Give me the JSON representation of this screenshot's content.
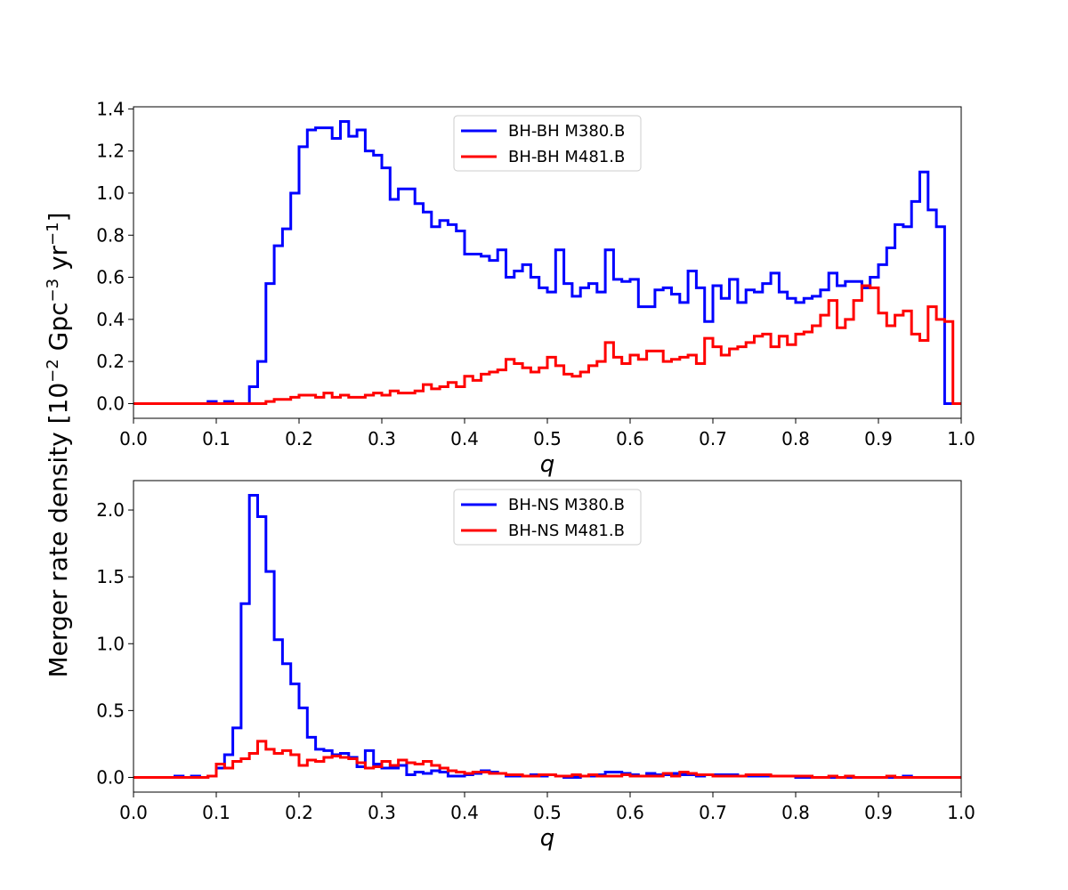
{
  "figure": {
    "ylabel_main": "Merger rate density [10",
    "ylabel_exp1": "−2",
    "ylabel_mid": " Gpc",
    "ylabel_exp2": "−3",
    "ylabel_mid2": " yr",
    "ylabel_exp3": "−1",
    "ylabel_end": "]"
  },
  "chart_data": [
    {
      "type": "line",
      "drawstyle": "steps-post",
      "xlabel": "q",
      "ylabel": "",
      "xlim": [
        0.0,
        1.0
      ],
      "ylim": [
        -0.07,
        1.41
      ],
      "xticks": [
        0.0,
        0.1,
        0.2,
        0.3,
        0.4,
        0.5,
        0.6,
        0.7,
        0.8,
        0.9,
        1.0
      ],
      "xtick_labels": [
        "0.0",
        "0.1",
        "0.2",
        "0.3",
        "0.4",
        "0.5",
        "0.6",
        "0.7",
        "0.8",
        "0.9",
        "1.0"
      ],
      "yticks": [
        0.0,
        0.2,
        0.4,
        0.6,
        0.8,
        1.0,
        1.2,
        1.4
      ],
      "ytick_labels": [
        "0.0",
        "0.2",
        "0.4",
        "0.6",
        "0.8",
        "1.0",
        "1.2",
        "1.4"
      ],
      "legend_position": "top-center",
      "bin_edges_start": 0.0,
      "bin_width": 0.01,
      "series": [
        {
          "name": "BH-BH M380.B",
          "color": "#0000ff",
          "values": [
            0,
            0,
            0,
            0,
            0,
            0,
            0,
            0,
            0,
            0.01,
            0,
            0.01,
            0,
            0,
            0.08,
            0.2,
            0.57,
            0.75,
            0.83,
            1.0,
            1.22,
            1.3,
            1.31,
            1.31,
            1.26,
            1.34,
            1.27,
            1.3,
            1.2,
            1.18,
            1.12,
            0.97,
            1.02,
            1.02,
            0.95,
            0.91,
            0.84,
            0.87,
            0.85,
            0.82,
            0.71,
            0.71,
            0.7,
            0.68,
            0.73,
            0.6,
            0.63,
            0.66,
            0.6,
            0.55,
            0.53,
            0.73,
            0.57,
            0.51,
            0.55,
            0.57,
            0.53,
            0.73,
            0.59,
            0.58,
            0.59,
            0.46,
            0.46,
            0.54,
            0.55,
            0.52,
            0.48,
            0.63,
            0.55,
            0.39,
            0.56,
            0.5,
            0.59,
            0.48,
            0.54,
            0.53,
            0.57,
            0.62,
            0.53,
            0.5,
            0.48,
            0.5,
            0.51,
            0.54,
            0.62,
            0.56,
            0.58,
            0.58,
            0.55,
            0.6,
            0.66,
            0.74,
            0.85,
            0.84,
            0.96,
            1.1,
            0.92,
            0.84,
            0,
            0
          ]
        },
        {
          "name": "BH-BH M481.B",
          "color": "#ff0000",
          "values": [
            0,
            0,
            0,
            0,
            0,
            0,
            0,
            0,
            0,
            0,
            0,
            0,
            0,
            0,
            0,
            0,
            0.01,
            0.02,
            0.02,
            0.03,
            0.04,
            0.04,
            0.03,
            0.05,
            0.03,
            0.04,
            0.03,
            0.03,
            0.04,
            0.05,
            0.04,
            0.06,
            0.05,
            0.05,
            0.06,
            0.09,
            0.07,
            0.08,
            0.1,
            0.08,
            0.13,
            0.11,
            0.14,
            0.15,
            0.16,
            0.21,
            0.19,
            0.17,
            0.15,
            0.17,
            0.22,
            0.18,
            0.14,
            0.13,
            0.15,
            0.18,
            0.2,
            0.29,
            0.22,
            0.19,
            0.23,
            0.21,
            0.25,
            0.25,
            0.2,
            0.21,
            0.22,
            0.23,
            0.19,
            0.31,
            0.27,
            0.23,
            0.26,
            0.27,
            0.29,
            0.32,
            0.33,
            0.27,
            0.32,
            0.28,
            0.33,
            0.34,
            0.37,
            0.42,
            0.49,
            0.36,
            0.4,
            0.49,
            0.56,
            0.55,
            0.43,
            0.37,
            0.42,
            0.44,
            0.33,
            0.3,
            0.46,
            0.4,
            0.39,
            0
          ]
        }
      ]
    },
    {
      "type": "line",
      "drawstyle": "steps-post",
      "xlabel": "q",
      "ylabel": "",
      "xlim": [
        0.0,
        1.0
      ],
      "ylim": [
        -0.11,
        2.22
      ],
      "xticks": [
        0.0,
        0.1,
        0.2,
        0.3,
        0.4,
        0.5,
        0.6,
        0.7,
        0.8,
        0.9,
        1.0
      ],
      "xtick_labels": [
        "0.0",
        "0.1",
        "0.2",
        "0.3",
        "0.4",
        "0.5",
        "0.6",
        "0.7",
        "0.8",
        "0.9",
        "1.0"
      ],
      "yticks": [
        0.0,
        0.5,
        1.0,
        1.5,
        2.0
      ],
      "ytick_labels": [
        "0.0",
        "0.5",
        "1.0",
        "1.5",
        "2.0"
      ],
      "legend_position": "top-center",
      "bin_edges_start": 0.0,
      "bin_width": 0.01,
      "series": [
        {
          "name": "BH-NS M380.B",
          "color": "#0000ff",
          "values": [
            0,
            0,
            0,
            0,
            0,
            0.01,
            0,
            0.01,
            0,
            0.01,
            0.07,
            0.17,
            0.37,
            1.3,
            2.11,
            1.95,
            1.54,
            1.03,
            0.85,
            0.7,
            0.52,
            0.3,
            0.21,
            0.2,
            0.17,
            0.18,
            0.15,
            0.08,
            0.2,
            0.1,
            0.07,
            0.07,
            0.09,
            0.02,
            0.04,
            0.03,
            0.05,
            0.04,
            0.01,
            0.01,
            0.02,
            0.03,
            0.05,
            0.04,
            0.03,
            0.01,
            0.01,
            0.01,
            0.02,
            0.01,
            0.02,
            0.01,
            0,
            0,
            0.01,
            0.01,
            0.02,
            0.04,
            0.04,
            0.03,
            0.02,
            0.01,
            0.03,
            0.02,
            0.02,
            0.03,
            0.02,
            0.02,
            0.01,
            0.02,
            0.02,
            0.02,
            0.02,
            0.01,
            0.01,
            0.01,
            0.01,
            0.01,
            0.01,
            0.01,
            0,
            0,
            0,
            0,
            0,
            0,
            0,
            0,
            0,
            0,
            0,
            0,
            0,
            0.01,
            0,
            0,
            0,
            0,
            0,
            0
          ]
        },
        {
          "name": "BH-NS M481.B",
          "color": "#ff0000",
          "values": [
            0,
            0,
            0,
            0,
            0,
            0,
            0,
            0,
            0,
            0.01,
            0.1,
            0.07,
            0.12,
            0.14,
            0.18,
            0.27,
            0.21,
            0.18,
            0.2,
            0.17,
            0.09,
            0.13,
            0.12,
            0.15,
            0.16,
            0.15,
            0.14,
            0.11,
            0.07,
            0.08,
            0.12,
            0.09,
            0.13,
            0.11,
            0.1,
            0.12,
            0.09,
            0.07,
            0.05,
            0.04,
            0.03,
            0.04,
            0.04,
            0.03,
            0.03,
            0.02,
            0.02,
            0.01,
            0.01,
            0.02,
            0.02,
            0.01,
            0.01,
            0.02,
            0.01,
            0.02,
            0.01,
            0.01,
            0.01,
            0.02,
            0.01,
            0.01,
            0.01,
            0.01,
            0.03,
            0.01,
            0.04,
            0.03,
            0.02,
            0.02,
            0.01,
            0.01,
            0.01,
            0.01,
            0.02,
            0.02,
            0.02,
            0.01,
            0.01,
            0.01,
            0.01,
            0.01,
            0,
            0,
            0.01,
            0,
            0.01,
            0,
            0,
            0,
            0,
            0.01,
            0,
            0,
            0,
            0,
            0,
            0,
            0,
            0
          ]
        }
      ]
    }
  ]
}
